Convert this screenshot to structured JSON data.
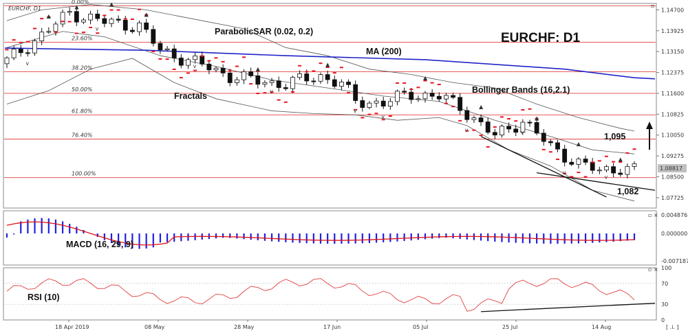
{
  "title": {
    "instrument": "EURCHF, D1",
    "overlay": "EURCHF: D1"
  },
  "price_axis": {
    "labels": [
      "1.14700",
      "1.13925",
      "1.13150",
      "1.12375",
      "1.11600",
      "1.10825",
      "1.10050",
      "1.09275",
      "1.08500",
      "1.07725"
    ],
    "current": "1.08817"
  },
  "fib_levels": [
    {
      "label": "0.00%",
      "price": 1.1485
    },
    {
      "label": "23.60%",
      "price": 1.135
    },
    {
      "label": "38.20%",
      "price": 1.124
    },
    {
      "label": "50.00%",
      "price": 1.116
    },
    {
      "label": "61.80%",
      "price": 1.108
    },
    {
      "label": "76.40%",
      "price": 1.099
    },
    {
      "label": "100.00%",
      "price": 1.0847
    }
  ],
  "annotations": {
    "psar": "ParabolicSAR (0.02, 0.2)",
    "ma": "MA (200)",
    "fractals": "Fractals",
    "bollinger": "Bollinger Bands (16,2.1)",
    "level_up": "1,095",
    "level_down": "1,082"
  },
  "macd": {
    "label": "MACD (16, 29, 9)",
    "axis": [
      "0.004876",
      "0.000000",
      "-0.007187"
    ]
  },
  "rsi": {
    "label": "RSI (10)",
    "axis": [
      "100",
      "70",
      "30",
      "0"
    ]
  },
  "dates": [
    "18 Apr 2019",
    "08 May",
    "28 May",
    "17 Jun",
    "05 Jul",
    "25 Jul",
    "14 Aug"
  ],
  "buttons": {
    "corner": "[ .i. ]"
  },
  "colors": {
    "sar": "#e8141b",
    "ma": "#1f24c8",
    "fib": "#e04040",
    "macd_hist": "#2020e0",
    "signal": "#e01010",
    "rsi": "#e04040"
  }
}
